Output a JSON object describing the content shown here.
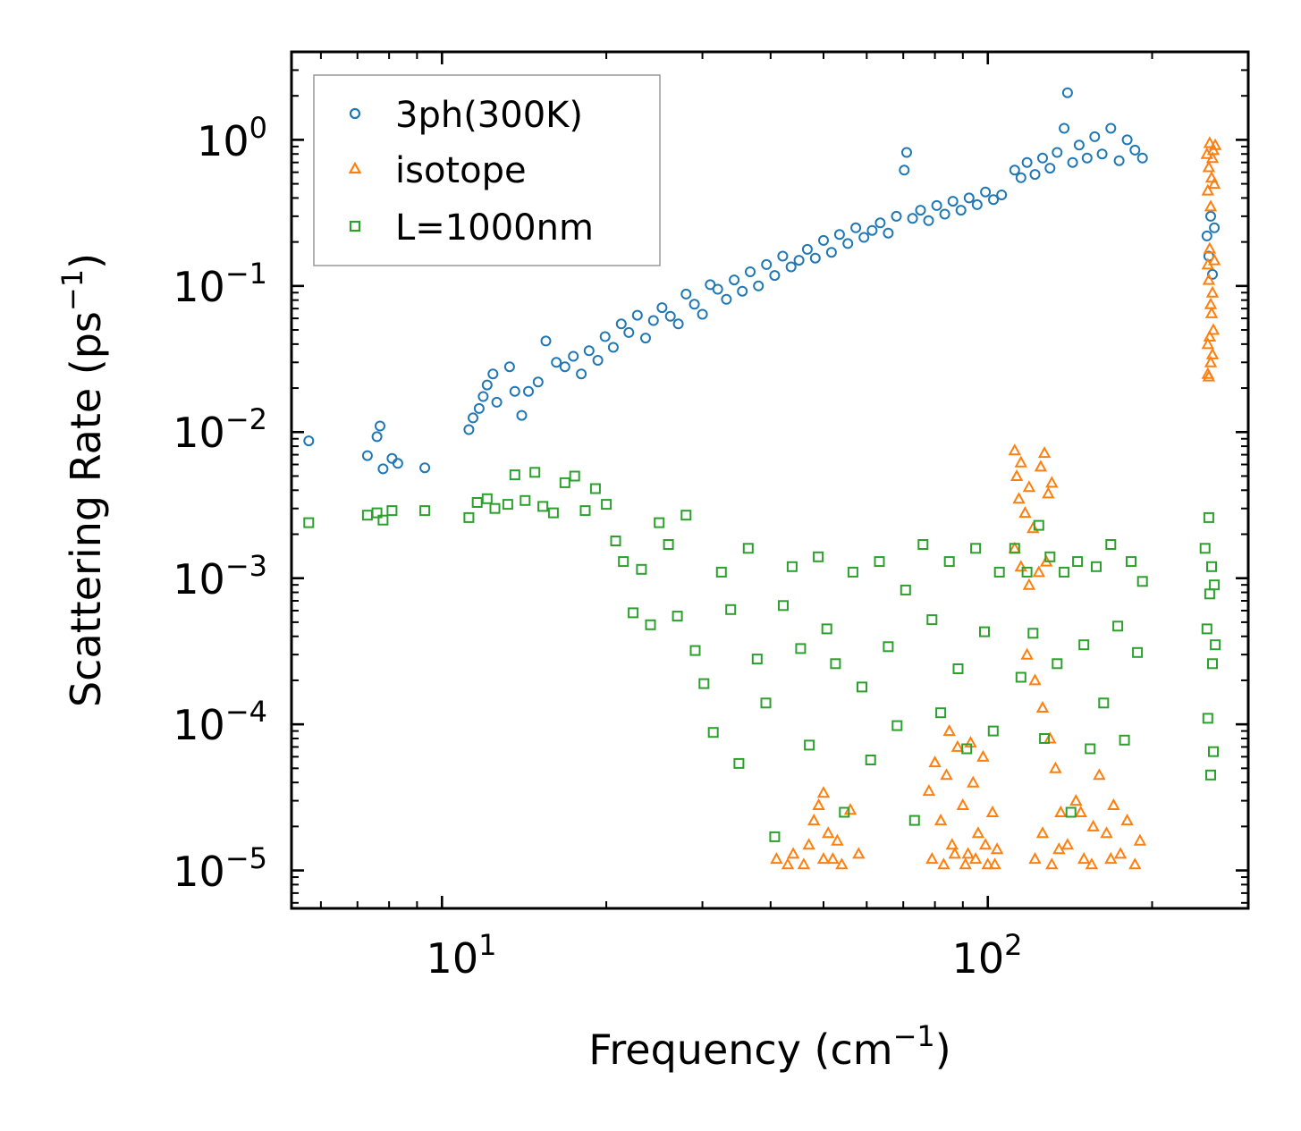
{
  "chart_data": {
    "type": "scatter",
    "xlabel": "Frequency (cm",
    "xlabel_sup": "−1",
    "xlabel_tail": ")",
    "ylabel": "Scattering Rate (ps",
    "ylabel_sup": "−1",
    "ylabel_tail": ")",
    "xscale": "log",
    "yscale": "log",
    "xlim": [
      5.3,
      300
    ],
    "ylim": [
      5.5e-06,
      4
    ],
    "x_ticks": [
      {
        "value": 10,
        "base": "10",
        "exp": "1"
      },
      {
        "value": 100,
        "base": "10",
        "exp": "2"
      }
    ],
    "y_ticks": [
      {
        "value": 1,
        "base": "10",
        "exp": "0"
      },
      {
        "value": 0.1,
        "base": "10",
        "exp": "−1"
      },
      {
        "value": 0.01,
        "base": "10",
        "exp": "−2"
      },
      {
        "value": 0.001,
        "base": "10",
        "exp": "−3"
      },
      {
        "value": 0.0001,
        "base": "10",
        "exp": "−4"
      },
      {
        "value": 1e-05,
        "base": "10",
        "exp": "−5"
      }
    ],
    "legend_position": "top-left",
    "series": [
      {
        "name": "3ph(300K)",
        "marker": "circle",
        "color": "#1f77b4",
        "points": [
          [
            5.7,
            0.0087
          ],
          [
            7.3,
            0.0069
          ],
          [
            7.6,
            0.0093
          ],
          [
            7.7,
            0.011
          ],
          [
            7.8,
            0.0056
          ],
          [
            8.1,
            0.0066
          ],
          [
            8.3,
            0.0061
          ],
          [
            9.3,
            0.0057
          ],
          [
            11.2,
            0.0104
          ],
          [
            11.4,
            0.0125
          ],
          [
            11.7,
            0.0145
          ],
          [
            11.9,
            0.0175
          ],
          [
            12.1,
            0.021
          ],
          [
            12.4,
            0.025
          ],
          [
            12.6,
            0.016
          ],
          [
            13.3,
            0.028
          ],
          [
            13.6,
            0.019
          ],
          [
            14.0,
            0.013
          ],
          [
            14.4,
            0.019
          ],
          [
            15.0,
            0.022
          ],
          [
            15.5,
            0.042
          ],
          [
            16.2,
            0.03
          ],
          [
            16.8,
            0.028
          ],
          [
            17.4,
            0.033
          ],
          [
            18.0,
            0.025
          ],
          [
            18.6,
            0.036
          ],
          [
            19.3,
            0.031
          ],
          [
            19.9,
            0.045
          ],
          [
            20.6,
            0.038
          ],
          [
            21.3,
            0.055
          ],
          [
            22.0,
            0.048
          ],
          [
            22.8,
            0.063
          ],
          [
            23.6,
            0.044
          ],
          [
            24.4,
            0.058
          ],
          [
            25.3,
            0.071
          ],
          [
            26.2,
            0.062
          ],
          [
            27.1,
            0.055
          ],
          [
            28.0,
            0.088
          ],
          [
            29.0,
            0.075
          ],
          [
            30.0,
            0.064
          ],
          [
            31.0,
            0.102
          ],
          [
            32.0,
            0.095
          ],
          [
            33.2,
            0.081
          ],
          [
            34.3,
            0.11
          ],
          [
            35.5,
            0.092
          ],
          [
            36.7,
            0.125
          ],
          [
            38.0,
            0.1
          ],
          [
            39.3,
            0.14
          ],
          [
            40.7,
            0.118
          ],
          [
            42.1,
            0.16
          ],
          [
            43.6,
            0.135
          ],
          [
            45.1,
            0.15
          ],
          [
            46.7,
            0.178
          ],
          [
            48.3,
            0.155
          ],
          [
            50.0,
            0.205
          ],
          [
            51.7,
            0.17
          ],
          [
            53.5,
            0.225
          ],
          [
            55.4,
            0.195
          ],
          [
            57.3,
            0.25
          ],
          [
            59.3,
            0.215
          ],
          [
            61.4,
            0.24
          ],
          [
            63.5,
            0.27
          ],
          [
            65.7,
            0.23
          ],
          [
            68.0,
            0.3
          ],
          [
            70.3,
            0.62
          ],
          [
            71.0,
            0.82
          ],
          [
            72.8,
            0.29
          ],
          [
            75.3,
            0.33
          ],
          [
            77.9,
            0.28
          ],
          [
            80.6,
            0.355
          ],
          [
            83.4,
            0.31
          ],
          [
            86.3,
            0.38
          ],
          [
            89.3,
            0.33
          ],
          [
            92.4,
            0.4
          ],
          [
            95.6,
            0.36
          ],
          [
            99.0,
            0.44
          ],
          [
            102.4,
            0.39
          ],
          [
            106.0,
            0.42
          ],
          [
            112,
            0.62
          ],
          [
            115,
            0.55
          ],
          [
            118,
            0.7
          ],
          [
            122,
            0.58
          ],
          [
            126,
            0.75
          ],
          [
            130,
            0.64
          ],
          [
            134,
            0.82
          ],
          [
            138,
            1.2
          ],
          [
            140,
            2.1
          ],
          [
            143,
            0.7
          ],
          [
            147,
            0.92
          ],
          [
            152,
            0.75
          ],
          [
            157,
            1.05
          ],
          [
            162,
            0.8
          ],
          [
            168,
            1.2
          ],
          [
            174,
            0.72
          ],
          [
            180,
            1.0
          ],
          [
            186,
            0.85
          ],
          [
            192,
            0.75
          ],
          [
            252,
            0.22
          ],
          [
            254,
            0.16
          ],
          [
            256,
            0.3
          ],
          [
            258,
            0.12
          ],
          [
            260,
            0.25
          ]
        ]
      },
      {
        "name": "isotope",
        "marker": "triangle",
        "color": "#ff7f0e",
        "points": [
          [
            252,
            0.8
          ],
          [
            253,
            0.45
          ],
          [
            254,
            0.65
          ],
          [
            255,
            0.95
          ],
          [
            256,
            0.35
          ],
          [
            257,
            0.55
          ],
          [
            258,
            0.75
          ],
          [
            259,
            0.85
          ],
          [
            260,
            0.5
          ],
          [
            261,
            0.92
          ],
          [
            253,
            0.14
          ],
          [
            254,
            0.11
          ],
          [
            255,
            0.18
          ],
          [
            256,
            0.075
          ],
          [
            258,
            0.09
          ],
          [
            257,
            0.065
          ],
          [
            255,
            0.045
          ],
          [
            253,
            0.04
          ],
          [
            259,
            0.05
          ],
          [
            256,
            0.03
          ],
          [
            253,
            0.025
          ],
          [
            254,
            0.024
          ],
          [
            258,
            0.034
          ],
          [
            260,
            0.15
          ],
          [
            112,
            0.0075
          ],
          [
            113,
            0.005
          ],
          [
            114,
            0.0035
          ],
          [
            115,
            0.0062
          ],
          [
            117,
            0.0028
          ],
          [
            119,
            0.0042
          ],
          [
            121,
            0.0022
          ],
          [
            125,
            0.0058
          ],
          [
            127,
            0.0072
          ],
          [
            129,
            0.0038
          ],
          [
            131,
            0.0045
          ],
          [
            112,
            0.0016
          ],
          [
            115,
            0.0012
          ],
          [
            119,
            0.0009
          ],
          [
            124,
            0.0011
          ],
          [
            128,
            0.0013
          ],
          [
            118,
            0.0003
          ],
          [
            122,
            0.0002
          ],
          [
            126,
            0.00013
          ],
          [
            130,
            8e-05
          ],
          [
            133,
            5e-05
          ],
          [
            136,
            2.5e-05
          ],
          [
            140,
            1.5e-05
          ],
          [
            145,
            3e-05
          ],
          [
            150,
            1.2e-05
          ],
          [
            156,
            2e-05
          ],
          [
            160,
            4.5e-05
          ],
          [
            165,
            1.8e-05
          ],
          [
            170,
            2.8e-05
          ],
          [
            175,
            1.3e-05
          ],
          [
            180,
            2.2e-05
          ],
          [
            186,
            1.1e-05
          ],
          [
            190,
            1.6e-05
          ],
          [
            122,
            1.2e-05
          ],
          [
            126,
            1.8e-05
          ],
          [
            131,
            1.1e-05
          ],
          [
            135,
            1.4e-05
          ],
          [
            148,
            2.5e-05
          ],
          [
            155,
            1.1e-05
          ],
          [
            168,
            1.2e-05
          ],
          [
            78,
            3.5e-05
          ],
          [
            80,
            5.5e-05
          ],
          [
            82,
            2.2e-05
          ],
          [
            84,
            4.5e-05
          ],
          [
            86,
            1.5e-05
          ],
          [
            88,
            7e-05
          ],
          [
            90,
            2.8e-05
          ],
          [
            92,
            1.3e-05
          ],
          [
            94,
            4e-05
          ],
          [
            96,
            1.8e-05
          ],
          [
            98,
            6e-05
          ],
          [
            100,
            1.1e-05
          ],
          [
            102,
            2.5e-05
          ],
          [
            104,
            1.4e-05
          ],
          [
            79,
            1.2e-05
          ],
          [
            83,
            1.1e-05
          ],
          [
            87,
            1.3e-05
          ],
          [
            91,
            1.1e-05
          ],
          [
            95,
            1.2e-05
          ],
          [
            99,
            1.5e-05
          ],
          [
            103,
            1.1e-05
          ],
          [
            85,
            9e-05
          ],
          [
            93,
            7.5e-05
          ],
          [
            41,
            1.2e-05
          ],
          [
            43,
            1.1e-05
          ],
          [
            44,
            1.3e-05
          ],
          [
            46,
            1.1e-05
          ],
          [
            47,
            1.5e-05
          ],
          [
            48,
            2.2e-05
          ],
          [
            49,
            2.8e-05
          ],
          [
            50,
            3.4e-05
          ],
          [
            51,
            1.8e-05
          ],
          [
            52,
            1.2e-05
          ],
          [
            53,
            1.6e-05
          ],
          [
            54,
            1.1e-05
          ],
          [
            56,
            2.6e-05
          ],
          [
            58,
            1.3e-05
          ],
          [
            50,
            1.2e-05
          ]
        ]
      },
      {
        "name": "L=1000nm",
        "marker": "square",
        "color": "#2ca02c",
        "points": [
          [
            5.7,
            0.0024
          ],
          [
            7.3,
            0.0027
          ],
          [
            7.6,
            0.0028
          ],
          [
            7.8,
            0.0025
          ],
          [
            8.1,
            0.0029
          ],
          [
            9.3,
            0.0029
          ],
          [
            11.2,
            0.0026
          ],
          [
            11.6,
            0.0033
          ],
          [
            12.1,
            0.0035
          ],
          [
            12.5,
            0.003
          ],
          [
            13.2,
            0.0032
          ],
          [
            13.6,
            0.0051
          ],
          [
            14.2,
            0.0034
          ],
          [
            14.8,
            0.0053
          ],
          [
            15.3,
            0.0031
          ],
          [
            16.0,
            0.0028
          ],
          [
            16.8,
            0.0045
          ],
          [
            17.5,
            0.005
          ],
          [
            18.3,
            0.0029
          ],
          [
            19.1,
            0.0041
          ],
          [
            20.0,
            0.0032
          ],
          [
            20.8,
            0.0018
          ],
          [
            21.5,
            0.0013
          ],
          [
            22.4,
            0.00058
          ],
          [
            23.2,
            0.00115
          ],
          [
            24.1,
            0.00048
          ],
          [
            25.0,
            0.0024
          ],
          [
            26.0,
            0.0017
          ],
          [
            27.0,
            0.00055
          ],
          [
            28.0,
            0.0027
          ],
          [
            29.1,
            0.00032
          ],
          [
            30.2,
            0.00019
          ],
          [
            31.4,
            8.8e-05
          ],
          [
            32.5,
            0.0011
          ],
          [
            33.8,
            0.00061
          ],
          [
            35.0,
            5.4e-05
          ],
          [
            36.4,
            0.0016
          ],
          [
            37.8,
            0.00028
          ],
          [
            39.2,
            0.00014
          ],
          [
            40.7,
            1.7e-05
          ],
          [
            42.2,
            0.00065
          ],
          [
            43.8,
            0.0012
          ],
          [
            45.4,
            0.00033
          ],
          [
            47.1,
            7.2e-05
          ],
          [
            48.9,
            0.0014
          ],
          [
            50.7,
            0.00045
          ],
          [
            52.6,
            0.00026
          ],
          [
            54.6,
            2.5e-05
          ],
          [
            56.6,
            0.0011
          ],
          [
            58.8,
            0.00018
          ],
          [
            61.0,
            5.7e-05
          ],
          [
            63.3,
            0.0013
          ],
          [
            65.7,
            0.00034
          ],
          [
            68.2,
            9.8e-05
          ],
          [
            70.7,
            0.00083
          ],
          [
            73.4,
            2.2e-05
          ],
          [
            76.1,
            0.0017
          ],
          [
            79.0,
            0.00052
          ],
          [
            82.0,
            0.00012
          ],
          [
            85.0,
            0.0013
          ],
          [
            88.2,
            0.00024
          ],
          [
            91.5,
            6.8e-05
          ],
          [
            95.0,
            0.0016
          ],
          [
            98.6,
            0.00043
          ],
          [
            102.3,
            9e-05
          ],
          [
            105.0,
            0.0011
          ],
          [
            112,
            0.0016
          ],
          [
            115,
            0.00021
          ],
          [
            118,
            0.0011
          ],
          [
            121,
            0.00042
          ],
          [
            124,
            0.0023
          ],
          [
            127,
            8e-05
          ],
          [
            130,
            0.0014
          ],
          [
            134,
            0.00026
          ],
          [
            138,
            0.0011
          ],
          [
            142,
            2.5e-05
          ],
          [
            146,
            0.0013
          ],
          [
            150,
            0.00035
          ],
          [
            154,
            6.8e-05
          ],
          [
            158,
            0.0012
          ],
          [
            163,
            0.00014
          ],
          [
            168,
            0.0017
          ],
          [
            173,
            0.00047
          ],
          [
            178,
            7.8e-05
          ],
          [
            183,
            0.0013
          ],
          [
            188,
            0.00031
          ],
          [
            192,
            0.00095
          ],
          [
            250,
            0.0016
          ],
          [
            252,
            0.00045
          ],
          [
            253,
            0.00011
          ],
          [
            254,
            0.0026
          ],
          [
            255,
            0.00078
          ],
          [
            256,
            4.5e-05
          ],
          [
            257,
            0.0012
          ],
          [
            258,
            0.00026
          ],
          [
            259,
            6.5e-05
          ],
          [
            260,
            0.0009
          ],
          [
            261,
            0.00035
          ]
        ]
      }
    ]
  }
}
